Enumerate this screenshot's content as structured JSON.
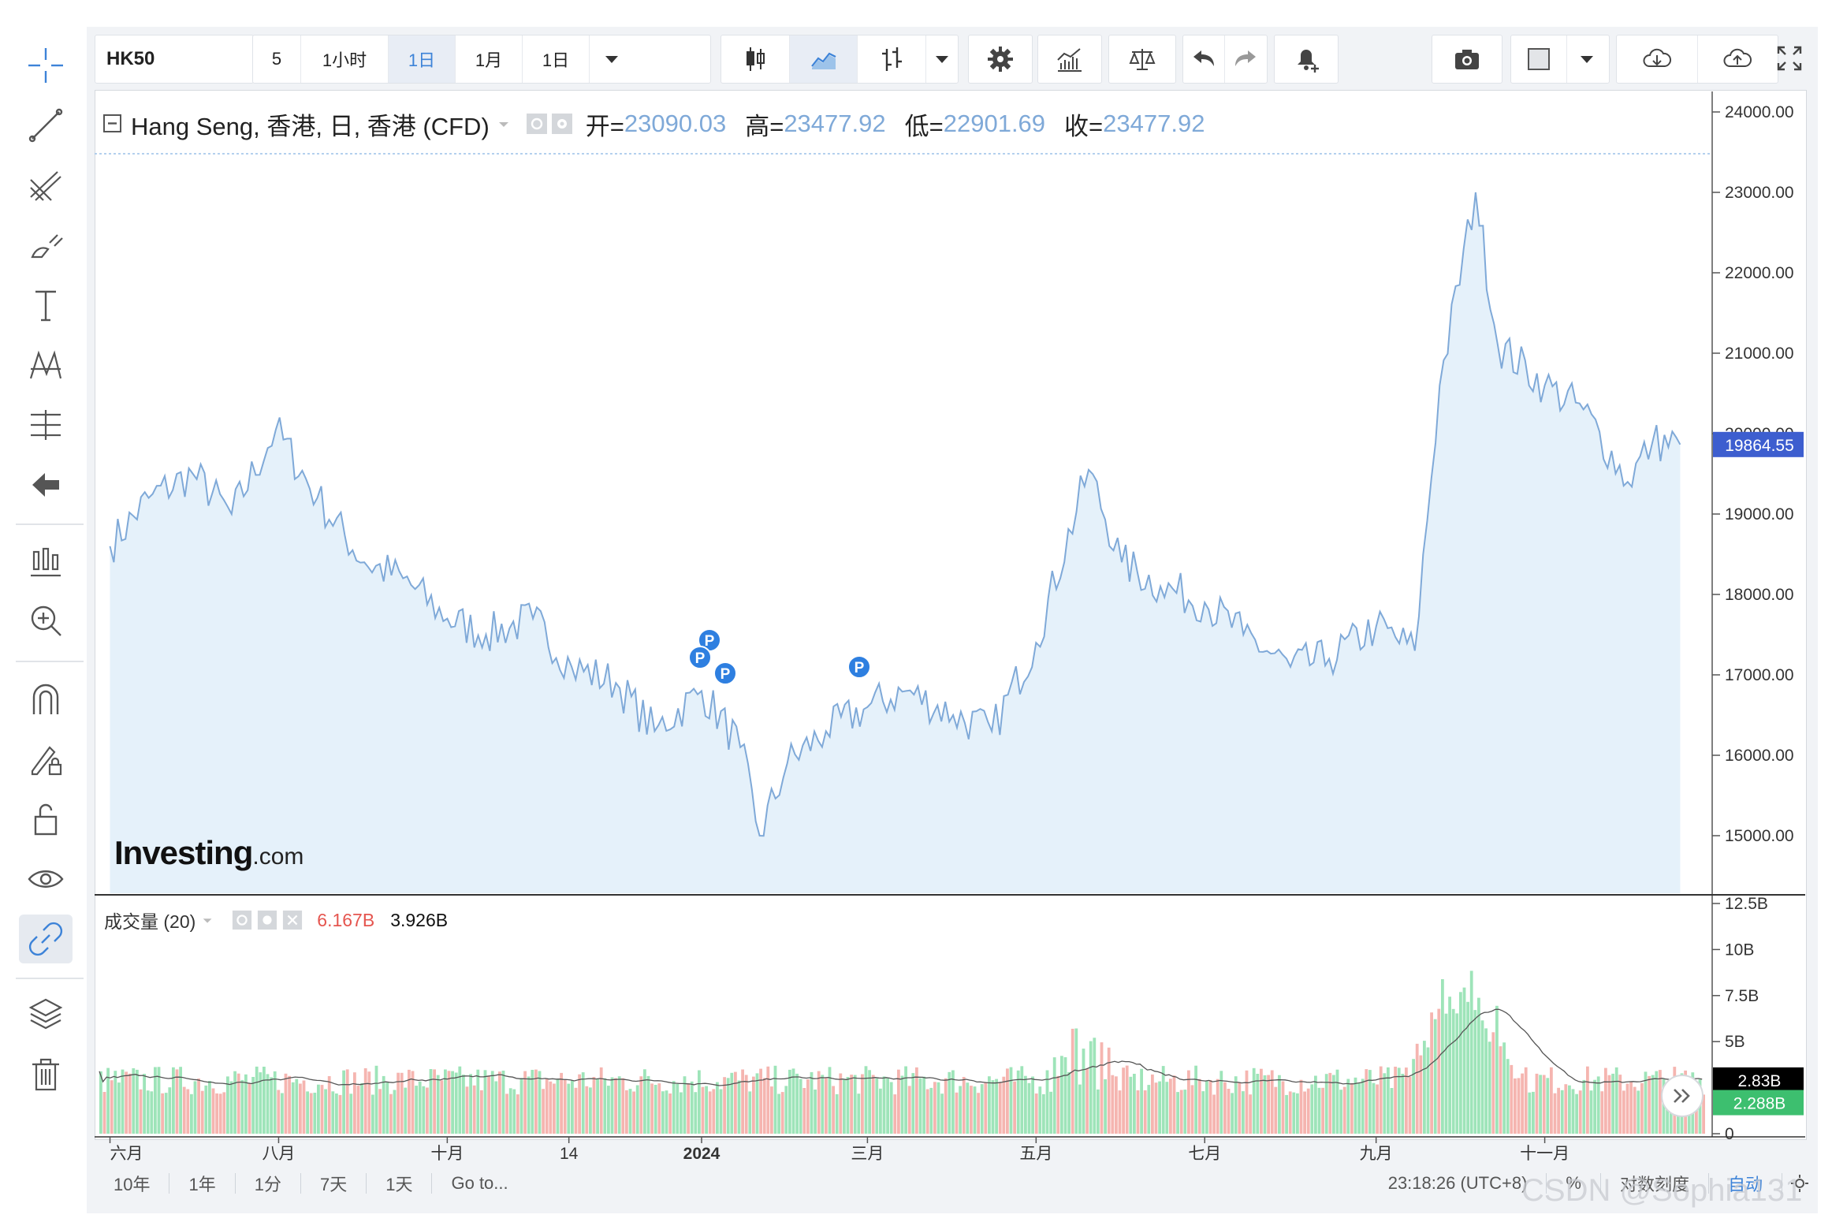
{
  "toolbar": {
    "symbol": "HK50",
    "intervals": [
      "5",
      "1小时",
      "1日",
      "1月",
      "1日"
    ],
    "selected_interval": "1日"
  },
  "legend": {
    "title": "Hang Seng, 香港, 日, 香港 (CFD)",
    "open_label": "开=",
    "open": "23090.03",
    "high_label": "高=",
    "high": "23477.92",
    "low_label": "低=",
    "low": "22901.69",
    "close_label": "收=",
    "close": "23477.92"
  },
  "volume_legend": {
    "title": "成交量 (20)",
    "value1": "6.167B",
    "value2": "3.926B",
    "value1_color": "#e5554f"
  },
  "logo": {
    "brand": "Investing",
    "suffix": ".com"
  },
  "markers": [
    "P",
    "P",
    "P",
    "P"
  ],
  "price_badge": "19864.55",
  "volume_badges": {
    "avg": "2.83B",
    "last": "2.288B"
  },
  "footer": {
    "ranges": [
      "10年",
      "1年",
      "1分",
      "7天",
      "1天"
    ],
    "goto": "Go to...",
    "time": "23:18:26 (UTC+8)",
    "percent": "%",
    "log": "对数刻度",
    "auto": "自动"
  },
  "watermark": "CSDN @Sophia131",
  "colors": {
    "line": "#7fa9d8",
    "area": "#e5f1fa",
    "vol_up": "#9ee4b9",
    "vol_down": "#f5b5b0",
    "badge_blue": "#3d5ecf",
    "badge_black": "#000000",
    "badge_green": "#3dbf6f",
    "marker": "#2e7fe0"
  },
  "chart_data": {
    "type": "area",
    "title": "Hang Seng, 香港, 日, 香港 (CFD)",
    "x_tick_labels": [
      "六月",
      "八月",
      "十月",
      "14",
      "2024",
      "三月",
      "五月",
      "七月",
      "九月",
      "十一月"
    ],
    "y_tick_labels": [
      "24000.00",
      "23000.00",
      "22000.00",
      "21000.00",
      "20000.00",
      "19000.00",
      "18000.00",
      "17000.00",
      "16000.00",
      "15000.00"
    ],
    "ylim": [
      14400,
      24150
    ],
    "x": [
      "2023-06-01",
      "2023-06-15",
      "2023-07-01",
      "2023-07-15",
      "2023-07-31",
      "2023-08-15",
      "2023-09-01",
      "2023-09-15",
      "2023-10-01",
      "2023-10-15",
      "2023-11-01",
      "2023-11-15",
      "2023-12-01",
      "2023-12-15",
      "2024-01-01",
      "2024-01-15",
      "2024-01-22",
      "2024-02-01",
      "2024-02-15",
      "2024-03-01",
      "2024-03-15",
      "2024-04-01",
      "2024-04-15",
      "2024-05-01",
      "2024-05-20",
      "2024-06-01",
      "2024-06-15",
      "2024-07-01",
      "2024-07-15",
      "2024-08-01",
      "2024-08-15",
      "2024-09-01",
      "2024-09-15",
      "2024-09-24",
      "2024-10-07",
      "2024-10-15",
      "2024-11-01",
      "2024-11-15",
      "2024-12-01",
      "2024-12-10",
      "2024-12-20"
    ],
    "y": [
      18600,
      19200,
      19500,
      19000,
      20050,
      19200,
      18400,
      18200,
      17700,
      17500,
      17700,
      17100,
      16900,
      16300,
      16800,
      16100,
      15000,
      15900,
      16300,
      16600,
      16800,
      16500,
      16300,
      17400,
      19550,
      18400,
      18100,
      17900,
      17500,
      17100,
      17200,
      17600,
      17300,
      20600,
      23000,
      21100,
      20600,
      20300,
      19400,
      19900,
      19864.55
    ],
    "volume_y_tick_labels": [
      "12.5B",
      "10B",
      "7.5B",
      "5B",
      "0"
    ],
    "volume_ylim": [
      0,
      12.5
    ],
    "volume_ma_period": 20,
    "volume_ylabel": "成交量 (20)",
    "last_price": 19864.55,
    "volume_last": 2.288,
    "volume_avg": 2.83
  }
}
